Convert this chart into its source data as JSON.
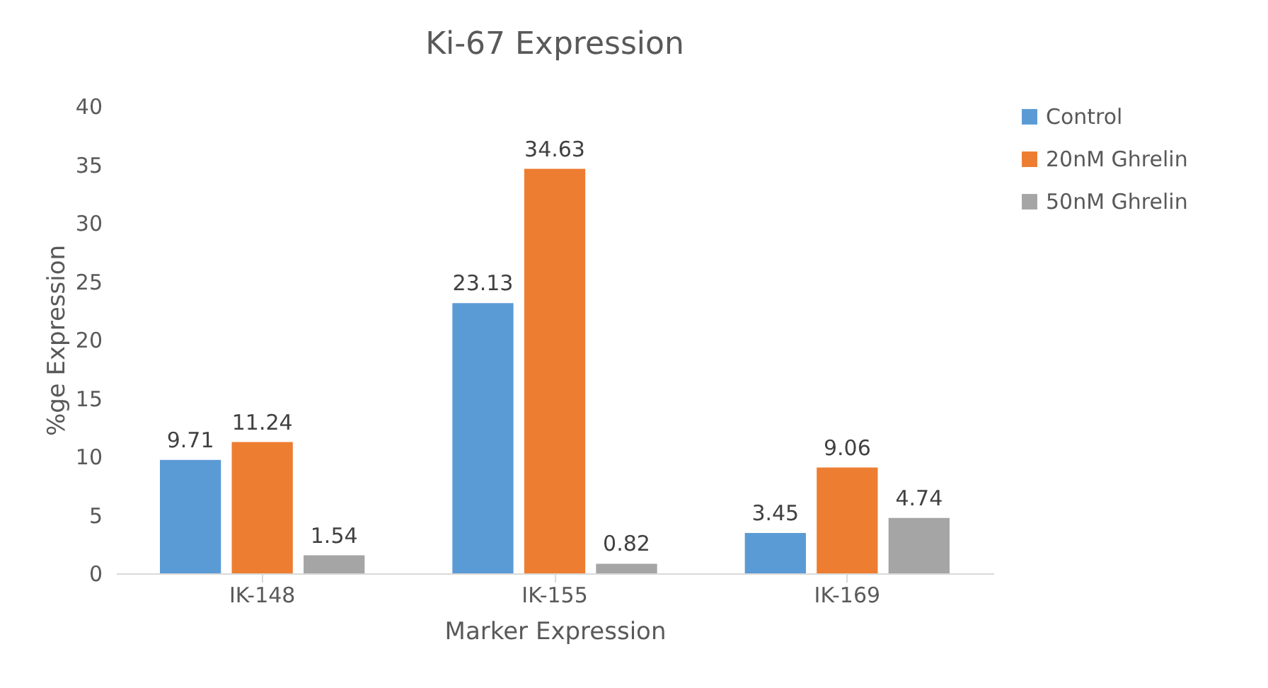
{
  "chart_data": {
    "type": "bar",
    "title": "Ki-67 Expression",
    "xlabel": "Marker Expression",
    "ylabel": "%ge Expression",
    "categories": [
      "IK-148",
      "IK-155",
      "IK-169"
    ],
    "series": [
      {
        "name": "Control",
        "color": "#5b9bd5",
        "values": [
          9.71,
          23.13,
          3.45
        ]
      },
      {
        "name": "20nM Ghrelin",
        "color": "#ed7d31",
        "values": [
          11.24,
          34.63,
          9.06
        ]
      },
      {
        "name": "50nM Ghrelin",
        "color": "#a5a5a5",
        "values": [
          1.54,
          0.82,
          4.74
        ]
      }
    ],
    "ylim": [
      0,
      40
    ],
    "yticks": [
      0,
      5,
      10,
      15,
      20,
      25,
      30,
      35,
      40
    ],
    "data_labels": true,
    "legend": "right",
    "grid": false
  }
}
